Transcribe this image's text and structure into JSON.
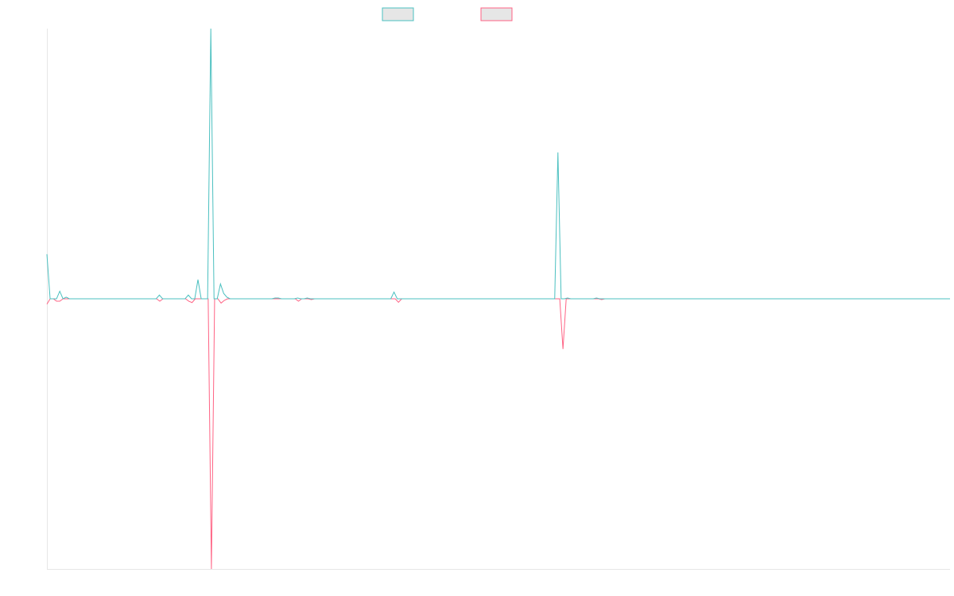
{
  "chart_data": {
    "type": "line",
    "title": "",
    "xlabel": "",
    "ylabel": "",
    "grid": false,
    "legend_position": "top-center",
    "ylim": [
      -100,
      100
    ],
    "colors": {
      "series_a": "#4bc0c0",
      "series_b": "#ff6384",
      "legend_fill": "#e6e6e6",
      "axis": "#e6e6e6"
    },
    "series": [
      {
        "color_key": "series_a",
        "values": [
          16.5,
          0,
          0,
          0,
          2.8,
          0,
          0.6,
          0,
          0,
          0,
          0,
          0,
          0,
          0,
          0,
          0,
          0,
          0,
          0,
          0,
          0,
          0,
          0,
          0,
          0,
          0,
          0,
          0,
          0,
          0,
          0,
          0,
          0,
          0,
          0,
          1.4,
          0,
          0,
          0,
          0,
          0,
          0,
          0,
          0,
          1.4,
          0,
          0,
          7.1,
          0,
          0,
          0,
          100,
          0,
          0,
          5.5,
          2.0,
          0.6,
          0,
          0,
          0,
          0,
          0,
          0,
          0,
          0,
          0,
          0,
          0,
          0,
          0,
          0,
          0.3,
          0.3,
          0,
          0,
          0,
          0,
          0,
          0.3,
          0,
          0,
          0.3,
          0,
          0,
          0,
          0,
          0,
          0,
          0,
          0,
          0,
          0,
          0,
          0,
          0,
          0,
          0,
          0,
          0,
          0,
          0,
          0,
          0,
          0,
          0,
          0,
          0,
          0,
          2.5,
          0,
          0,
          0,
          0,
          0,
          0,
          0,
          0,
          0,
          0,
          0,
          0,
          0,
          0,
          0,
          0,
          0,
          0,
          0,
          0,
          0,
          0,
          0,
          0,
          0,
          0,
          0,
          0,
          0,
          0,
          0,
          0,
          0,
          0,
          0,
          0,
          0,
          0,
          0,
          0,
          0,
          0,
          0,
          0,
          0,
          0,
          0,
          0,
          0,
          0,
          54.2,
          0,
          0,
          0.3,
          0,
          0,
          0,
          0,
          0,
          0,
          0,
          0,
          0.3,
          0,
          0,
          0,
          0,
          0,
          0,
          0,
          0,
          0,
          0,
          0,
          0,
          0,
          0,
          0,
          0,
          0,
          0,
          0,
          0,
          0,
          0,
          0,
          0,
          0,
          0,
          0,
          0,
          0,
          0,
          0,
          0,
          0,
          0,
          0,
          0,
          0,
          0,
          0,
          0,
          0,
          0,
          0,
          0,
          0,
          0,
          0,
          0,
          0,
          0,
          0,
          0,
          0,
          0,
          0,
          0,
          0,
          0,
          0,
          0,
          0,
          0,
          0,
          0,
          0,
          0,
          0,
          0,
          0,
          0,
          0,
          0,
          0,
          0,
          0,
          0,
          0,
          0,
          0,
          0,
          0,
          0,
          0,
          0,
          0,
          0,
          0,
          0,
          0,
          0,
          0,
          0,
          0,
          0,
          0,
          0,
          0,
          0,
          0,
          0,
          0,
          0,
          0,
          0,
          0,
          0,
          0,
          0,
          0,
          0
        ]
      },
      {
        "color_key": "series_b",
        "values": [
          -2.0,
          0,
          0,
          -0.9,
          -0.9,
          0,
          0,
          0,
          0,
          0,
          0,
          0,
          0,
          0,
          0,
          0,
          0,
          0,
          0,
          0,
          0,
          0,
          0,
          0,
          0,
          0,
          0,
          0,
          0,
          0,
          0,
          0,
          0,
          0,
          0,
          -0.9,
          0,
          0,
          0,
          0,
          0,
          0,
          0,
          0,
          -0.9,
          -1.4,
          0,
          0,
          0,
          0,
          0,
          -100,
          0,
          0,
          -1.6,
          -0.6,
          0,
          0,
          0,
          0,
          0,
          0,
          0,
          0,
          0,
          0,
          0,
          0,
          0,
          0,
          0,
          0,
          0,
          0,
          0,
          0,
          0,
          0,
          -0.9,
          0,
          0,
          0,
          -0.3,
          0,
          0,
          0,
          0,
          0,
          0,
          0,
          0,
          0,
          0,
          0,
          0,
          0,
          0,
          0,
          0,
          0,
          0,
          0,
          0,
          0,
          0,
          0,
          0,
          0,
          0,
          -1.3,
          0,
          0,
          0,
          0,
          0,
          0,
          0,
          0,
          0,
          0,
          0,
          0,
          0,
          0,
          0,
          0,
          0,
          0,
          0,
          0,
          0,
          0,
          0,
          0,
          0,
          0,
          0,
          0,
          0,
          0,
          0,
          0,
          0,
          0,
          0,
          0,
          0,
          0,
          0,
          0,
          0,
          0,
          0,
          0,
          0,
          0,
          0,
          0,
          0,
          0,
          -18.6,
          0,
          0,
          0,
          0,
          0,
          0,
          0,
          0,
          0,
          0,
          0,
          -0.3,
          0,
          0,
          0,
          0,
          0,
          0,
          0,
          0,
          0,
          0,
          0,
          0,
          0,
          0,
          0,
          0,
          0,
          0,
          0,
          0,
          0,
          0,
          0,
          0,
          0,
          0,
          0,
          0,
          0,
          0,
          0,
          0,
          0,
          0,
          0,
          0,
          0,
          0,
          0,
          0,
          0,
          0,
          0,
          0,
          0,
          0,
          0,
          0,
          0,
          0,
          0,
          0,
          0,
          0,
          0,
          0,
          0,
          0,
          0,
          0,
          0,
          0,
          0,
          0,
          0,
          0,
          0,
          0,
          0,
          0,
          0,
          0,
          0,
          0,
          0,
          0,
          0,
          0,
          0,
          0,
          0,
          0,
          0,
          0,
          0,
          0,
          0,
          0,
          0,
          0,
          0,
          0,
          0,
          0,
          0,
          0,
          0,
          0,
          0,
          0,
          0,
          0,
          0,
          0,
          0,
          0,
          0,
          0
        ]
      }
    ]
  }
}
